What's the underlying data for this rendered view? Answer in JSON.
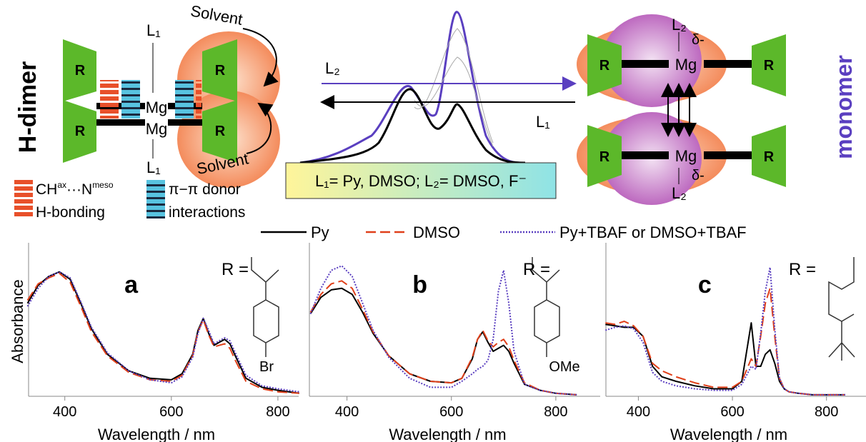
{
  "diagram": {
    "h_dimer": "H-dimer",
    "monomer": "monomer",
    "solvent": "Solvent",
    "r": "R",
    "mg": "Mg",
    "l1": "L₁",
    "l2": "L₂",
    "delta": "δ-",
    "legend_hbond": [
      "CH",
      "ax",
      "···N",
      "meso",
      "H-bonding"
    ],
    "legend_pi": [
      "π−π donor",
      "interactions"
    ],
    "ligands_box": "L₁= Py, DMSO; L₂= DMSO, F⁻"
  },
  "legend": {
    "entries": [
      {
        "name": "Py",
        "color": "#000000",
        "dash": "solid"
      },
      {
        "name": "DMSO",
        "color": "#e0401a",
        "dash": "dashed"
      },
      {
        "name": "Py+TBAF or DMSO+TBAF",
        "color": "#5a3fc0",
        "dash": "dotted"
      }
    ]
  },
  "chart_data": [
    {
      "type": "line",
      "panel_label": "a",
      "r_label": "R =",
      "substituent": "Br",
      "x_label": "Wavelength / nm",
      "y_label": "Absorbance",
      "x": [
        330,
        350,
        370,
        390,
        410,
        430,
        450,
        480,
        520,
        560,
        600,
        620,
        640,
        650,
        660,
        670,
        680,
        690,
        700,
        710,
        720,
        740,
        770,
        800,
        840
      ],
      "xlim": [
        332,
        839
      ],
      "xticks": [
        400,
        600,
        800
      ],
      "ylim": [
        0,
        1
      ],
      "series": [
        {
          "values": [
            0.62,
            0.74,
            0.8,
            0.83,
            0.78,
            0.62,
            0.45,
            0.28,
            0.17,
            0.12,
            0.11,
            0.15,
            0.28,
            0.44,
            0.52,
            0.42,
            0.34,
            0.36,
            0.38,
            0.35,
            0.27,
            0.12,
            0.06,
            0.04,
            0.02
          ]
        },
        {
          "values": [
            0.64,
            0.75,
            0.79,
            0.82,
            0.76,
            0.6,
            0.43,
            0.27,
            0.16,
            0.11,
            0.1,
            0.14,
            0.27,
            0.43,
            0.51,
            0.41,
            0.33,
            0.34,
            0.35,
            0.32,
            0.24,
            0.1,
            0.05,
            0.03,
            0.02
          ]
        },
        {
          "values": [
            0.6,
            0.72,
            0.8,
            0.83,
            0.79,
            0.63,
            0.46,
            0.29,
            0.17,
            0.11,
            0.09,
            0.13,
            0.26,
            0.42,
            0.52,
            0.44,
            0.35,
            0.37,
            0.39,
            0.37,
            0.29,
            0.14,
            0.07,
            0.05,
            0.03
          ]
        }
      ]
    },
    {
      "type": "line",
      "panel_label": "b",
      "r_label": "R =",
      "substituent": "OMe",
      "x_label": "Wavelength / nm",
      "x": [
        330,
        350,
        370,
        390,
        410,
        430,
        450,
        480,
        520,
        560,
        600,
        620,
        640,
        650,
        660,
        670,
        680,
        690,
        700,
        710,
        720,
        740,
        770,
        800,
        840
      ],
      "xlim": [
        328,
        885
      ],
      "xticks": [
        400,
        600,
        800
      ],
      "ylim": [
        0,
        1
      ],
      "series": [
        {
          "values": [
            0.55,
            0.66,
            0.71,
            0.72,
            0.68,
            0.56,
            0.42,
            0.27,
            0.15,
            0.1,
            0.09,
            0.12,
            0.25,
            0.38,
            0.43,
            0.36,
            0.3,
            0.32,
            0.34,
            0.3,
            0.22,
            0.08,
            0.04,
            0.02,
            0.01
          ]
        },
        {
          "values": [
            0.56,
            0.68,
            0.75,
            0.77,
            0.72,
            0.58,
            0.43,
            0.27,
            0.15,
            0.1,
            0.09,
            0.12,
            0.26,
            0.38,
            0.44,
            0.37,
            0.33,
            0.36,
            0.38,
            0.33,
            0.24,
            0.09,
            0.04,
            0.02,
            0.01
          ]
        },
        {
          "values": [
            0.55,
            0.72,
            0.84,
            0.87,
            0.8,
            0.62,
            0.44,
            0.26,
            0.12,
            0.06,
            0.06,
            0.1,
            0.15,
            0.18,
            0.2,
            0.24,
            0.38,
            0.7,
            0.84,
            0.62,
            0.3,
            0.08,
            0.04,
            0.02,
            0.01
          ]
        }
      ]
    },
    {
      "type": "line",
      "panel_label": "c",
      "r_label": "R =",
      "x_label": "Wavelength / nm",
      "x": [
        330,
        350,
        370,
        390,
        410,
        430,
        450,
        480,
        520,
        560,
        600,
        620,
        640,
        650,
        660,
        670,
        680,
        690,
        700,
        710,
        720,
        740,
        770,
        800,
        840
      ],
      "xlim": [
        331,
        884
      ],
      "xticks": [
        400,
        600,
        800
      ],
      "ylim": [
        0,
        1
      ],
      "series": [
        {
          "values": [
            0.48,
            0.47,
            0.46,
            0.46,
            0.4,
            0.2,
            0.13,
            0.1,
            0.07,
            0.05,
            0.05,
            0.1,
            0.49,
            0.2,
            0.2,
            0.28,
            0.31,
            0.22,
            0.1,
            0.05,
            0.03,
            0.02,
            0.01,
            0.01,
            0.01
          ]
        },
        {
          "values": [
            0.49,
            0.48,
            0.5,
            0.47,
            0.4,
            0.22,
            0.17,
            0.13,
            0.09,
            0.06,
            0.06,
            0.1,
            0.25,
            0.2,
            0.4,
            0.62,
            0.72,
            0.4,
            0.12,
            0.05,
            0.03,
            0.02,
            0.01,
            0.01,
            0.01
          ]
        },
        {
          "values": [
            0.44,
            0.46,
            0.47,
            0.45,
            0.36,
            0.16,
            0.1,
            0.07,
            0.05,
            0.04,
            0.04,
            0.08,
            0.2,
            0.18,
            0.42,
            0.7,
            0.86,
            0.45,
            0.12,
            0.05,
            0.03,
            0.02,
            0.01,
            0.01,
            0.01
          ]
        }
      ]
    }
  ]
}
